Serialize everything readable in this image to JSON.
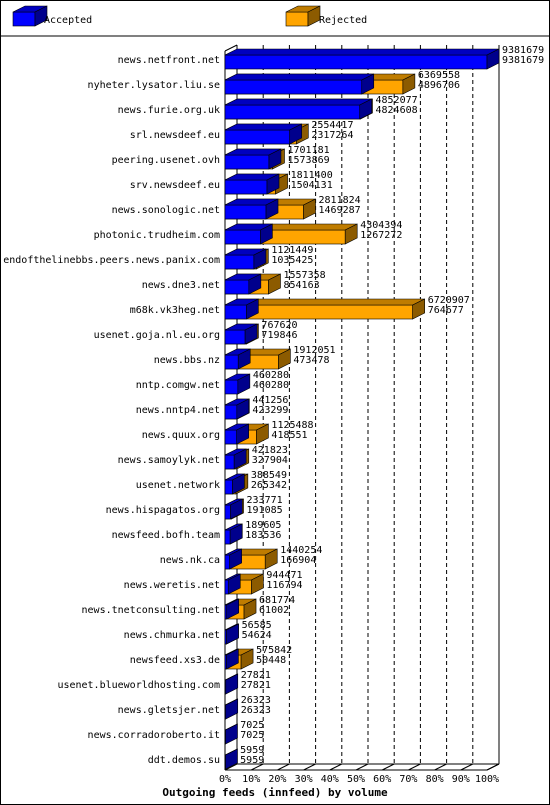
{
  "chart_data": {
    "type": "bar",
    "orientation": "horizontal",
    "stacked": false,
    "xlabel": "Outgoing feeds (innfeed) by volume",
    "xlim": [
      0,
      100
    ],
    "x_unit": "%",
    "x_ticks": [
      "0%",
      "10%",
      "20%",
      "30%",
      "40%",
      "50%",
      "60%",
      "70%",
      "80%",
      "90%",
      "100%"
    ],
    "legend_position": "top",
    "max_value": 9381679,
    "series": [
      {
        "name": "Accepted",
        "color": "#0000ff"
      },
      {
        "name": "Rejected",
        "color": "#ffa500"
      }
    ],
    "categories": [
      "news.netfront.net",
      "nyheter.lysator.liu.se",
      "news.furie.org.uk",
      "srl.newsdeef.eu",
      "peering.usenet.ovh",
      "srv.newsdeef.eu",
      "news.sonologic.net",
      "photonic.trudheim.com",
      "endofthelinebbs.peers.news.panix.com",
      "news.dne3.net",
      "m68k.vk3heg.net",
      "usenet.goja.nl.eu.org",
      "news.bbs.nz",
      "nntp.comgw.net",
      "news.nntp4.net",
      "news.quux.org",
      "news.samoylyk.net",
      "usenet.network",
      "news.hispagatos.org",
      "newsfeed.bofh.team",
      "news.nk.ca",
      "news.weretis.net",
      "news.tnetconsulting.net",
      "news.chmurka.net",
      "newsfeed.xs3.de",
      "usenet.blueworldhosting.com",
      "news.gletsjer.net",
      "news.corradoroberto.it",
      "ddt.demos.su"
    ],
    "offered": [
      "9381679",
      "6369558",
      "4852077",
      "2554417",
      "1701181",
      "1811400",
      "2811824",
      "4304394",
      "1121449",
      "1557358",
      "6720907",
      "767620",
      "1912051",
      "460280",
      "441256",
      "1125488",
      "421823",
      "388549",
      "233771",
      "189605",
      "1440254",
      "944471",
      "681774",
      "56585",
      "575842",
      "27821",
      "26323",
      "7025",
      "5959"
    ],
    "accepted": [
      "9381679",
      "4896706",
      "4824608",
      "2317264",
      "1573869",
      "1504131",
      "1469287",
      "1267272",
      "1035425",
      "854163",
      "764677",
      "719846",
      "473478",
      "460280",
      "423299",
      "418551",
      "327904",
      "265342",
      "191085",
      "183536",
      "166904",
      "116794",
      "61002",
      "54624",
      "50448",
      "27821",
      "26323",
      "7025",
      "5959"
    ]
  }
}
